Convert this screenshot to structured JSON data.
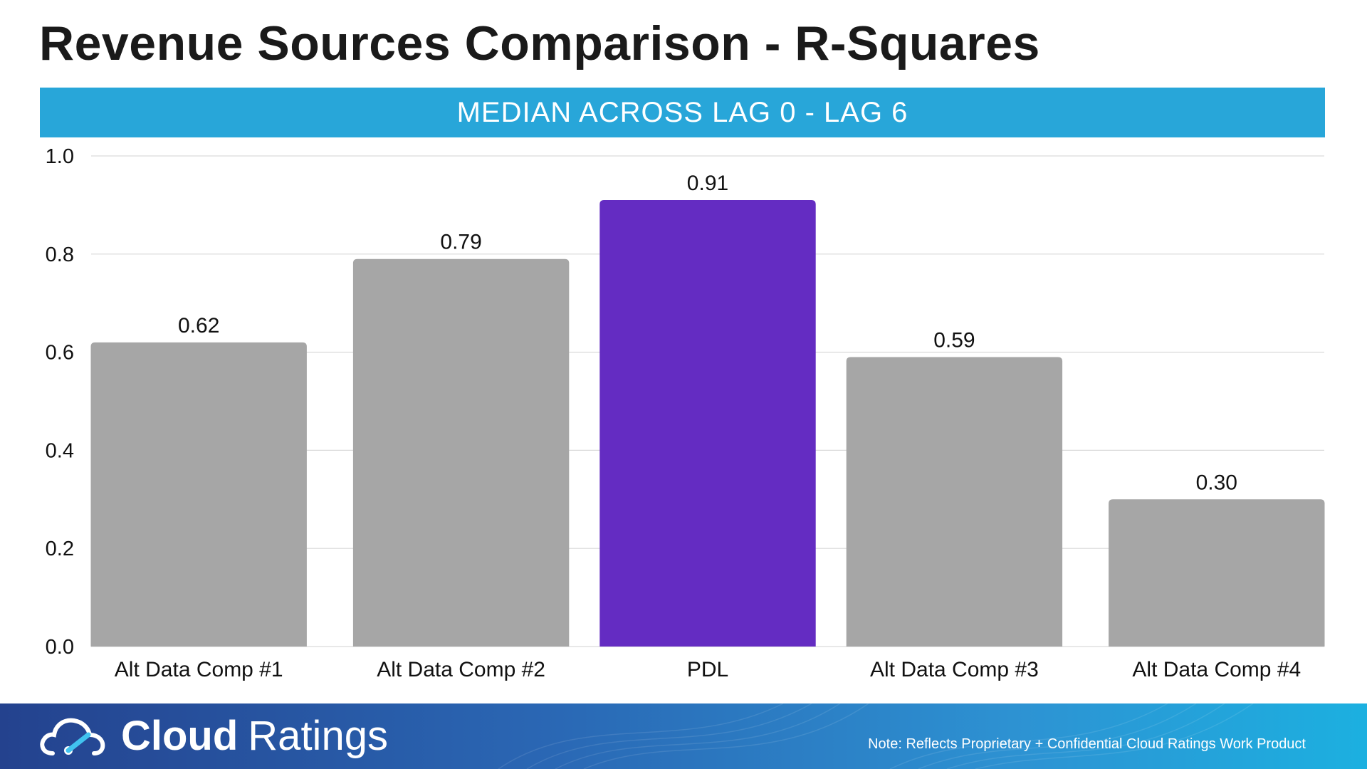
{
  "title": "Revenue Sources Comparison - R-Squares",
  "subtitle": "MEDIAN ACROSS LAG 0 - LAG 6",
  "colors": {
    "band": "#28a6d9",
    "bar_default": "#a6a6a6",
    "bar_highlight": "#642cc2",
    "grid": "#d9d9d9",
    "text": "#111111"
  },
  "chart_data": {
    "type": "bar",
    "title": "Revenue Sources Comparison - R-Squares",
    "subtitle": "MEDIAN ACROSS LAG 0 - LAG 6",
    "categories": [
      "Alt Data Comp #1",
      "Alt Data Comp #2",
      "PDL",
      "Alt Data Comp #3",
      "Alt Data Comp #4"
    ],
    "values": [
      0.62,
      0.79,
      0.91,
      0.59,
      0.3
    ],
    "value_labels": [
      "0.62",
      "0.79",
      "0.91",
      "0.59",
      "0.30"
    ],
    "highlight_category": "PDL",
    "ylim": [
      0,
      1.0
    ],
    "yticks": [
      0.0,
      0.2,
      0.4,
      0.6,
      0.8,
      1.0
    ],
    "ytick_labels": [
      "0.0",
      "0.2",
      "0.4",
      "0.6",
      "0.8",
      "1.0"
    ],
    "xlabel": "",
    "ylabel": "",
    "grid": true,
    "legend": "none"
  },
  "footer": {
    "brand_bold": "Cloud",
    "brand_light": "Ratings",
    "logo_icon": "cloud-gauge-icon",
    "note": "Note: Reflects Proprietary + Confidential Cloud Ratings Work Product"
  }
}
